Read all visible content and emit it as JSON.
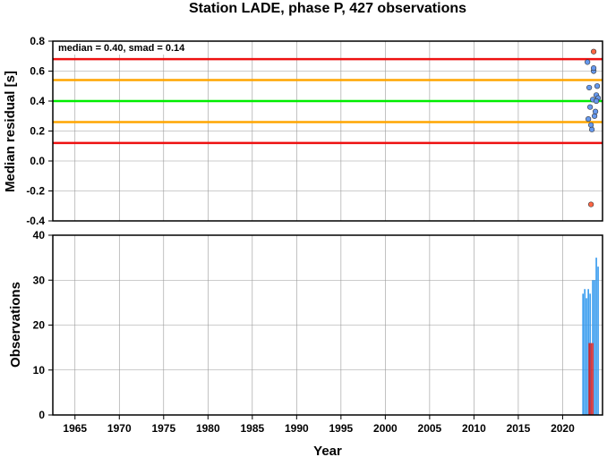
{
  "chart_data": [
    {
      "type": "scatter",
      "title": "Station LADE, phase P, 427 observations",
      "ylabel": "Median residual [s]",
      "annotation": "median = 0.40, smad = 0.14",
      "xlim": [
        1962.5,
        2024.5
      ],
      "ylim": [
        -0.4,
        0.8
      ],
      "yticks": [
        "-0.4",
        "-0.2",
        "0.0",
        "0.2",
        "0.4",
        "0.6",
        "0.8"
      ],
      "grid": true,
      "reference_lines": [
        {
          "name": "median",
          "y": 0.4,
          "color": "#00ee00"
        },
        {
          "name": "median - 1 smad",
          "y": 0.26,
          "color": "#ffa500"
        },
        {
          "name": "median + 1 smad",
          "y": 0.54,
          "color": "#ffa500"
        },
        {
          "name": "median - 2 smad",
          "y": 0.12,
          "color": "#ee1111"
        },
        {
          "name": "median + 2 smad",
          "y": 0.68,
          "color": "#ee1111"
        }
      ],
      "series": [
        {
          "color": "#6699ee",
          "x": [
            2022.8,
            2022.9,
            2023.0,
            2023.2,
            2023.3,
            2023.5,
            2023.6,
            2023.7,
            2023.8,
            2023.9,
            2024.0,
            2023.1,
            2023.4,
            2023.8,
            2023.5
          ],
          "y": [
            0.66,
            0.28,
            0.49,
            0.24,
            0.21,
            0.6,
            0.3,
            0.33,
            0.44,
            0.5,
            0.42,
            0.36,
            0.41,
            0.4,
            0.62
          ]
        },
        {
          "color": "#ff6644",
          "x": [
            2023.5,
            2023.2
          ],
          "y": [
            0.73,
            -0.29
          ]
        }
      ]
    },
    {
      "type": "bar",
      "xlabel": "Year",
      "ylabel": "Observations",
      "xlim": [
        1962.5,
        2024.5
      ],
      "ylim": [
        0,
        40
      ],
      "xticks": [
        "1965",
        "1970",
        "1975",
        "1980",
        "1985",
        "1990",
        "1995",
        "2000",
        "2005",
        "2010",
        "2015",
        "2020"
      ],
      "yticks": [
        "0",
        "10",
        "20",
        "30",
        "40"
      ],
      "grid": true,
      "series": [
        {
          "color": "#3399ee",
          "x": [
            2022.3,
            2022.5,
            2022.7,
            2022.9,
            2023.1,
            2023.4,
            2023.6,
            2023.8,
            2024.0
          ],
          "values": [
            27,
            28,
            26,
            28,
            27,
            30,
            30,
            35,
            33
          ]
        },
        {
          "color": "#dd2222",
          "x": [
            2023.0,
            2023.2,
            2023.4
          ],
          "values": [
            16,
            16,
            16
          ]
        }
      ]
    }
  ]
}
